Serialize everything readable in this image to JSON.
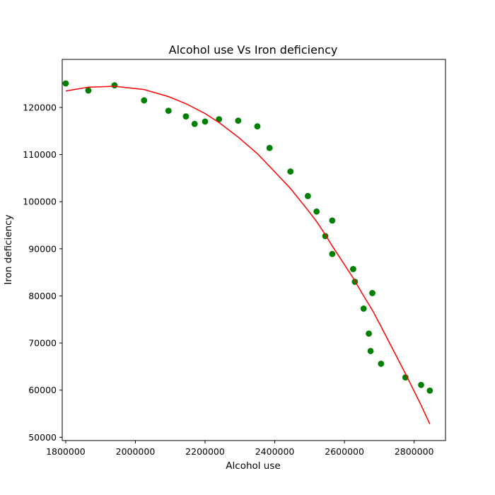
{
  "chart_data": {
    "type": "scatter",
    "title": "Alcohol use Vs Iron deficiency",
    "xlabel": "Alcohol use",
    "ylabel": "Iron deficiency",
    "xlim": [
      1790000,
      2890000
    ],
    "ylim": [
      49300,
      130200
    ],
    "xticks": [
      1800000,
      2000000,
      2200000,
      2400000,
      2600000,
      2800000
    ],
    "xtick_labels": [
      "1800000",
      "2000000",
      "2200000",
      "2400000",
      "2600000",
      "2800000"
    ],
    "yticks": [
      50000,
      60000,
      70000,
      80000,
      90000,
      100000,
      110000,
      120000
    ],
    "ytick_labels": [
      "50000",
      "60000",
      "70000",
      "80000",
      "90000",
      "100000",
      "110000",
      "120000"
    ],
    "grid": false,
    "series": [
      {
        "kind": "scatter",
        "color": "#008000",
        "points": [
          [
            1800000,
            125100
          ],
          [
            1865000,
            123600
          ],
          [
            1940000,
            124700
          ],
          [
            2025000,
            121500
          ],
          [
            2095000,
            119300
          ],
          [
            2145000,
            118100
          ],
          [
            2170000,
            116500
          ],
          [
            2200000,
            117000
          ],
          [
            2240000,
            117500
          ],
          [
            2295000,
            117200
          ],
          [
            2350000,
            116000
          ],
          [
            2385000,
            111400
          ],
          [
            2445000,
            106400
          ],
          [
            2495000,
            101200
          ],
          [
            2520000,
            97900
          ],
          [
            2545000,
            92700
          ],
          [
            2565000,
            96000
          ],
          [
            2565000,
            88900
          ],
          [
            2625000,
            85700
          ],
          [
            2630000,
            83000
          ],
          [
            2655000,
            77300
          ],
          [
            2670000,
            72000
          ],
          [
            2675000,
            68300
          ],
          [
            2680000,
            80600
          ],
          [
            2705000,
            65600
          ],
          [
            2775000,
            62700
          ],
          [
            2820000,
            61100
          ],
          [
            2845000,
            59900
          ]
        ]
      },
      {
        "kind": "line",
        "color": "#ff0000",
        "points": [
          [
            1800000,
            123500
          ],
          [
            1865000,
            124300
          ],
          [
            1940000,
            124500
          ],
          [
            2025000,
            123800
          ],
          [
            2095000,
            122300
          ],
          [
            2145000,
            120800
          ],
          [
            2200000,
            118700
          ],
          [
            2240000,
            116800
          ],
          [
            2295000,
            113700
          ],
          [
            2350000,
            110200
          ],
          [
            2385000,
            107500
          ],
          [
            2445000,
            102800
          ],
          [
            2495000,
            98200
          ],
          [
            2520000,
            95800
          ],
          [
            2545000,
            93000
          ],
          [
            2565000,
            90600
          ],
          [
            2625000,
            83800
          ],
          [
            2655000,
            80000
          ],
          [
            2680000,
            77000
          ],
          [
            2705000,
            73500
          ],
          [
            2775000,
            63500
          ],
          [
            2820000,
            56800
          ],
          [
            2845000,
            52800
          ]
        ]
      }
    ]
  }
}
